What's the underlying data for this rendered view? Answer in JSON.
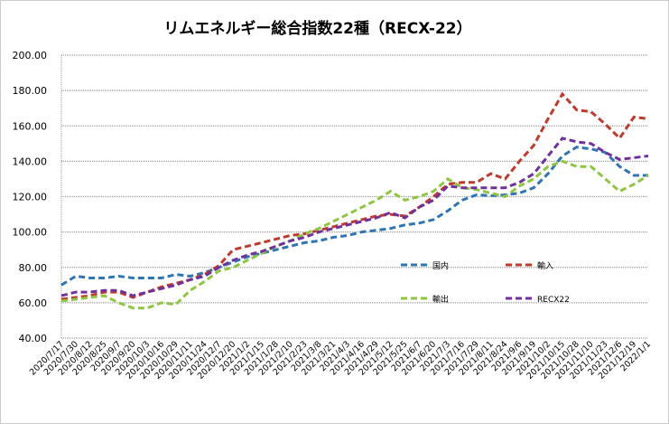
{
  "chart_data": {
    "type": "line",
    "title": "リムエネルギー総合指数22種（RECX-22）",
    "xlabel": "",
    "ylabel": "",
    "ylim": [
      40,
      200
    ],
    "yticks": [
      "200.00",
      "180.00",
      "160.00",
      "140.00",
      "120.00",
      "100.00",
      "80.00",
      "60.00",
      "40.00"
    ],
    "ytick_values": [
      200,
      180,
      160,
      140,
      120,
      100,
      80,
      60,
      40
    ],
    "grid": true,
    "legend_placement": "inside-lower-right",
    "categories": [
      "2020/7/17",
      "2020/7/30",
      "2020/8/12",
      "2020/8/25",
      "2020/9/7",
      "2020/9/20",
      "2020/10/3",
      "2020/10/16",
      "2020/10/29",
      "2020/11/11",
      "2020/11/24",
      "2020/12/7",
      "2020/12/20",
      "2021/1/2",
      "2021/1/15",
      "2021/1/28",
      "2021/2/10",
      "2021/2/23",
      "2021/3/8",
      "2021/3/21",
      "2021/4/3",
      "2021/4/16",
      "2021/4/29",
      "2021/5/12",
      "2021/5/25",
      "2021/6/7",
      "2021/6/20",
      "2021/7/3",
      "2021/7/16",
      "2021/7/29",
      "2021/8/11",
      "2021/8/24",
      "2021/9/6",
      "2021/9/19",
      "2021/10/2",
      "2021/10/15",
      "2021/10/28",
      "2021/11/10",
      "2021/11/23",
      "2021/12/6",
      "2021/12/19",
      "2022/1/1"
    ],
    "series": [
      {
        "name": "国内",
        "color": "#2e75b6",
        "values": [
          70,
          75,
          74,
          74,
          75,
          74,
          74,
          74,
          76,
          75,
          77,
          80,
          83,
          86,
          88,
          90,
          92,
          94,
          95,
          97,
          98,
          100,
          101,
          102,
          104,
          105,
          107,
          112,
          118,
          121,
          120.5,
          121,
          122,
          125,
          133,
          143,
          148,
          147,
          145,
          137,
          132,
          132
        ]
      },
      {
        "name": "輸入",
        "color": "#c0392b",
        "values": [
          62,
          63,
          64,
          66,
          66,
          63,
          66,
          69,
          71,
          73,
          76,
          81,
          90,
          92,
          94,
          96,
          98,
          99,
          101,
          103,
          105,
          107,
          109,
          110,
          109,
          114,
          120,
          127,
          128,
          128,
          133,
          130,
          140,
          149,
          164,
          178,
          169,
          168,
          161,
          153,
          165,
          164
        ]
      },
      {
        "name": "輸出",
        "color": "#8dc63f",
        "values": [
          61,
          62,
          63,
          64,
          60,
          57,
          57,
          60,
          59,
          67,
          72,
          78,
          80,
          84,
          88,
          92,
          95,
          99,
          102,
          106,
          110,
          114,
          118,
          123,
          118,
          120,
          123,
          130,
          125,
          124,
          122,
          120,
          126,
          130,
          137,
          140,
          137,
          137,
          130,
          123,
          127,
          132
        ]
      },
      {
        "name": "RECX22",
        "color": "#7030a0",
        "values": [
          64,
          66,
          66,
          67,
          67,
          64,
          66,
          68,
          70,
          73,
          75,
          80,
          84,
          87,
          89,
          92,
          95,
          97,
          100,
          102,
          104,
          106,
          108,
          111,
          108,
          114,
          118,
          126,
          125,
          125,
          125,
          125,
          128,
          133,
          143,
          153,
          151,
          150,
          145,
          141,
          142,
          143
        ]
      }
    ]
  }
}
